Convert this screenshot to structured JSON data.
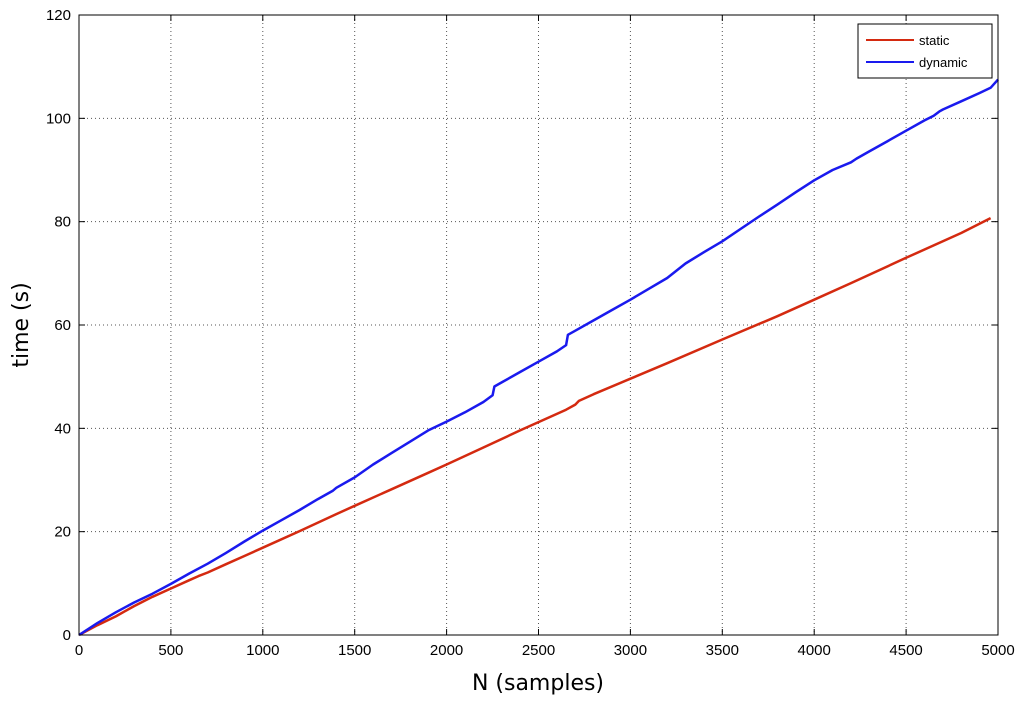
{
  "chart_data": {
    "type": "line",
    "title": "",
    "xlabel": "N (samples)",
    "ylabel": "time (s)",
    "xlim": [
      0,
      5000
    ],
    "ylim": [
      0,
      120
    ],
    "xticks": [
      0,
      500,
      1000,
      1500,
      2000,
      2500,
      3000,
      3500,
      4000,
      4500,
      5000
    ],
    "yticks": [
      0,
      20,
      40,
      60,
      80,
      100,
      120
    ],
    "grid": true,
    "legend_position": "top-right",
    "series": [
      {
        "name": "static",
        "color": "#d42a10",
        "x": [
          0,
          100,
          200,
          250,
          300,
          400,
          500,
          600,
          650,
          700,
          800,
          900,
          1000,
          1200,
          1400,
          1500,
          1700,
          1900,
          2000,
          2200,
          2400,
          2600,
          2650,
          2700,
          2720,
          2800,
          3000,
          3200,
          3500,
          3800,
          4000,
          4200,
          4500,
          4800,
          4960
        ],
        "y": [
          0,
          1.9,
          3.6,
          4.6,
          5.6,
          7.4,
          9.0,
          10.6,
          11.4,
          12.1,
          13.7,
          15.3,
          16.9,
          20.1,
          23.4,
          25.0,
          28.2,
          31.4,
          33.0,
          36.3,
          39.6,
          42.8,
          43.6,
          44.6,
          45.3,
          46.6,
          49.6,
          52.6,
          57.2,
          61.7,
          64.9,
          68.1,
          73.0,
          77.8,
          80.7
        ]
      },
      {
        "name": "dynamic",
        "color": "#1a1aee",
        "x": [
          0,
          100,
          200,
          300,
          400,
          500,
          600,
          700,
          800,
          900,
          1000,
          1100,
          1200,
          1300,
          1380,
          1400,
          1500,
          1600,
          1700,
          1800,
          1900,
          2000,
          2100,
          2200,
          2250,
          2260,
          2300,
          2400,
          2500,
          2600,
          2650,
          2660,
          2700,
          2800,
          2900,
          3000,
          3100,
          3200,
          3300,
          3400,
          3500,
          3600,
          3700,
          3800,
          3900,
          4000,
          4100,
          4200,
          4230,
          4300,
          4400,
          4500,
          4600,
          4650,
          4680,
          4700,
          4800,
          4900,
          4960,
          5000
        ],
        "y": [
          0,
          2.3,
          4.4,
          6.3,
          8.0,
          9.9,
          11.9,
          13.8,
          15.9,
          18.1,
          20.2,
          22.2,
          24.2,
          26.3,
          27.9,
          28.5,
          30.5,
          33.0,
          35.2,
          37.4,
          39.6,
          41.3,
          43.1,
          45.1,
          46.4,
          48.1,
          48.9,
          50.9,
          52.9,
          54.9,
          56.1,
          58.1,
          58.9,
          60.9,
          62.9,
          64.9,
          67.0,
          69.1,
          71.9,
          74.1,
          76.2,
          78.6,
          81.0,
          83.3,
          85.7,
          88.0,
          90.0,
          91.5,
          92.2,
          93.6,
          95.6,
          97.6,
          99.6,
          100.5,
          101.3,
          101.7,
          103.3,
          104.9,
          105.9,
          107.5
        ]
      }
    ]
  }
}
